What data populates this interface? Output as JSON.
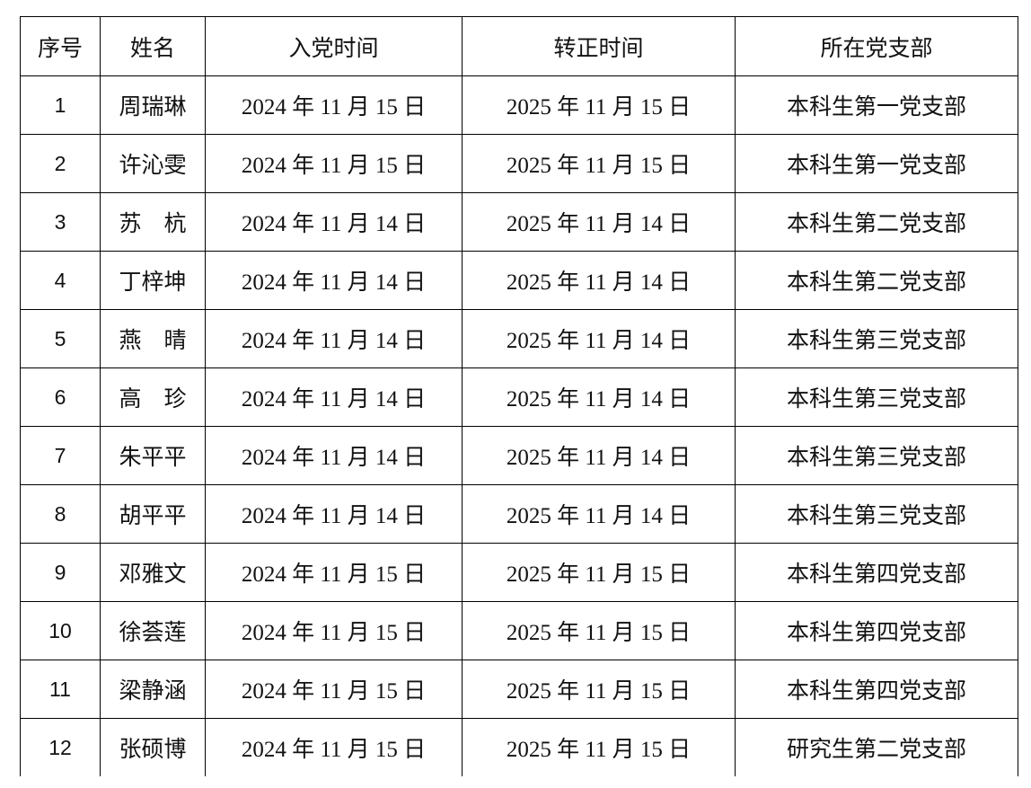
{
  "table": {
    "headers": [
      "序号",
      "姓名",
      "入党时间",
      "转正时间",
      "所在党支部"
    ],
    "rows": [
      [
        "1",
        "周瑞琳",
        "2024 年 11 月 15 日",
        "2025 年 11 月 15 日",
        "本科生第一党支部"
      ],
      [
        "2",
        "许沁雯",
        "2024 年 11 月 15 日",
        "2025 年 11 月 15 日",
        "本科生第一党支部"
      ],
      [
        "3",
        "苏　杭",
        "2024 年 11 月 14 日",
        "2025 年 11 月 14 日",
        "本科生第二党支部"
      ],
      [
        "4",
        "丁梓坤",
        "2024 年 11 月 14 日",
        "2025 年 11 月 14 日",
        "本科生第二党支部"
      ],
      [
        "5",
        "燕　晴",
        "2024 年 11 月 14 日",
        "2025 年 11 月 14 日",
        "本科生第三党支部"
      ],
      [
        "6",
        "高　珍",
        "2024 年 11 月 14 日",
        "2025 年 11 月 14 日",
        "本科生第三党支部"
      ],
      [
        "7",
        "朱平平",
        "2024 年 11 月 14 日",
        "2025 年 11 月 14 日",
        "本科生第三党支部"
      ],
      [
        "8",
        "胡平平",
        "2024 年 11 月 14 日",
        "2025 年 11 月 14 日",
        "本科生第三党支部"
      ],
      [
        "9",
        "邓雅文",
        "2024 年 11 月 15 日",
        "2025 年 11 月 15 日",
        "本科生第四党支部"
      ],
      [
        "10",
        "徐荟莲",
        "2024 年 11 月 15 日",
        "2025 年 11 月 15 日",
        "本科生第四党支部"
      ],
      [
        "11",
        "梁静涵",
        "2024 年 11 月 15 日",
        "2025 年 11 月 15 日",
        "本科生第四党支部"
      ],
      [
        "12",
        "张硕博",
        "2024 年 11 月 15 日",
        "2025 年 11 月 15 日",
        "研究生第二党支部"
      ]
    ]
  }
}
